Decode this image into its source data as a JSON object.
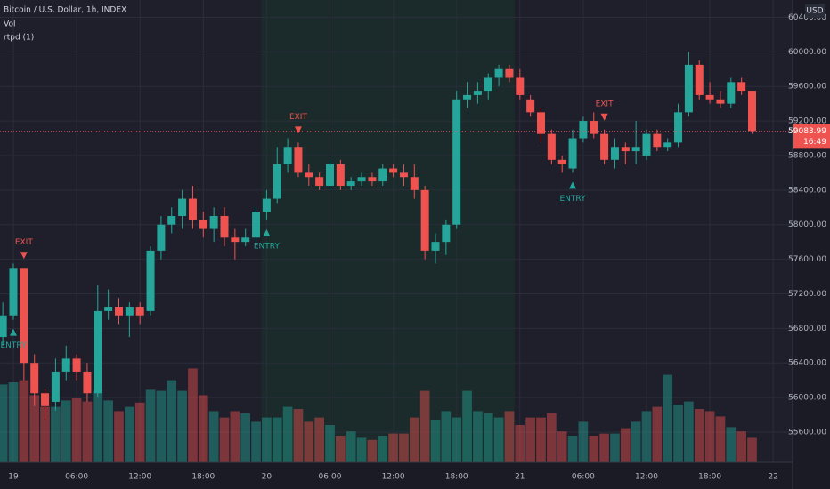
{
  "chart_data": {
    "type": "candlestick",
    "title": "Bitcoin / U.S. Dollar, 1h, INDEX",
    "indicators": [
      "Vol",
      "rtpd (1)"
    ],
    "currency": "USD",
    "categories": [
      null,
      "19",
      null,
      null,
      null,
      null,
      null,
      "06:00",
      null,
      null,
      null,
      null,
      null,
      "12:00",
      null,
      null,
      null,
      null,
      null,
      "18:00",
      null,
      null,
      null,
      null,
      null,
      "20",
      null,
      null,
      null,
      null,
      null,
      "06:00",
      null,
      null,
      null,
      null,
      null,
      "12:00",
      null,
      null,
      null,
      null,
      null,
      "18:00",
      null,
      null,
      null,
      null,
      null,
      "21",
      null,
      null,
      null,
      null,
      null,
      "06:00",
      null,
      null,
      null,
      null,
      null,
      "12:00",
      null,
      null,
      null,
      null,
      null,
      "18:00",
      null,
      null,
      null,
      null,
      null,
      "22"
    ],
    "open": [
      56700,
      56950,
      57500,
      56400,
      56050,
      55950,
      56300,
      56450,
      56300,
      56050,
      57000,
      57050,
      56950,
      57050,
      57000,
      57700,
      58000,
      58100,
      58300,
      58050,
      57950,
      58100,
      57850,
      57800,
      57850,
      58150,
      58300,
      58700,
      58900,
      58600,
      58550,
      58450,
      58700,
      58450,
      58500,
      58550,
      58500,
      58650,
      58600,
      58550,
      58400,
      57700,
      57800,
      58000,
      59450,
      59500,
      59550,
      59700,
      59800,
      59700,
      59450,
      59300,
      59050,
      58750,
      58650,
      59000,
      59200,
      59050,
      58750,
      58900,
      58850,
      58800,
      59050,
      58900,
      58950,
      59300,
      59850,
      59500,
      59450,
      59400,
      59650,
      59550,
      null,
      null
    ],
    "high": [
      57100,
      57550,
      57500,
      56500,
      56100,
      56450,
      56600,
      56500,
      56400,
      57300,
      57250,
      57150,
      57100,
      57100,
      57750,
      58100,
      58200,
      58400,
      58450,
      58150,
      58200,
      58200,
      57950,
      57950,
      58200,
      58400,
      58900,
      59000,
      58950,
      58700,
      58600,
      58750,
      58750,
      58550,
      58600,
      58600,
      58700,
      58700,
      58700,
      58700,
      58450,
      57900,
      58050,
      59550,
      59650,
      59650,
      59750,
      59850,
      59850,
      59800,
      59500,
      59350,
      59100,
      58800,
      59100,
      59250,
      59300,
      59100,
      59000,
      58950,
      59200,
      59100,
      59100,
      59000,
      59400,
      60000,
      59900,
      59650,
      59550,
      59700,
      59700,
      59550,
      null,
      null
    ],
    "low": [
      56600,
      56900,
      56200,
      55900,
      55750,
      55850,
      56200,
      56200,
      55950,
      56000,
      56900,
      56850,
      56700,
      56850,
      56950,
      57600,
      57900,
      57950,
      57950,
      57850,
      57800,
      57750,
      57600,
      57750,
      57800,
      58050,
      58250,
      58600,
      58550,
      58450,
      58400,
      58400,
      58400,
      58400,
      58450,
      58450,
      58450,
      58550,
      58450,
      58300,
      57600,
      57550,
      57650,
      57950,
      59350,
      59400,
      59450,
      59600,
      59650,
      59450,
      59250,
      58950,
      58700,
      58600,
      58600,
      58950,
      59000,
      58700,
      58650,
      58700,
      58700,
      58750,
      58850,
      58850,
      58900,
      59250,
      59450,
      59400,
      59350,
      59350,
      59500,
      59050,
      null,
      null
    ],
    "close": [
      56950,
      57500,
      56400,
      56050,
      55900,
      56300,
      56450,
      56300,
      56050,
      57000,
      57050,
      56950,
      57050,
      56950,
      57700,
      58000,
      58100,
      58300,
      58050,
      57950,
      58100,
      57850,
      57800,
      57850,
      58150,
      58300,
      58700,
      58900,
      58600,
      58550,
      58450,
      58700,
      58450,
      58500,
      58550,
      58500,
      58650,
      58600,
      58550,
      58400,
      57700,
      57800,
      58000,
      59450,
      59500,
      59550,
      59700,
      59800,
      59700,
      59500,
      59300,
      59050,
      58750,
      58700,
      59000,
      59200,
      59050,
      58750,
      58900,
      58850,
      58900,
      59050,
      58900,
      58950,
      59300,
      59850,
      59500,
      59450,
      59400,
      59650,
      59550,
      59083.99,
      null,
      null
    ],
    "up_color": "#26a69a",
    "down_color": "#ef5350",
    "volume": {
      "values": [
        73,
        75,
        77,
        63,
        52,
        52,
        58,
        60,
        57,
        67,
        58,
        48,
        52,
        56,
        68,
        67,
        77,
        67,
        88,
        63,
        48,
        42,
        48,
        46,
        38,
        42,
        42,
        52,
        50,
        38,
        42,
        35,
        25,
        29,
        23,
        21,
        25,
        27,
        27,
        42,
        67,
        40,
        48,
        42,
        67,
        48,
        46,
        42,
        48,
        35,
        42,
        42,
        46,
        29,
        25,
        38,
        25,
        27,
        27,
        32,
        38,
        48,
        52,
        82,
        54,
        57,
        50,
        48,
        43,
        33,
        29,
        23,
        null,
        null
      ],
      "ylim": [
        0,
        100
      ]
    },
    "ylim": [
      55250,
      60600
    ],
    "yticks": [
      {
        "value": 55600,
        "label": "55600.00"
      },
      {
        "value": 56000,
        "label": "56000.00"
      },
      {
        "value": 56400,
        "label": "56400.00"
      },
      {
        "value": 56800,
        "label": "56800.00"
      },
      {
        "value": 57200,
        "label": "57200.00"
      },
      {
        "value": 57600,
        "label": "57600.00"
      },
      {
        "value": 58000,
        "label": "58000.00"
      },
      {
        "value": 58400,
        "label": "58400.00"
      },
      {
        "value": 58800,
        "label": "58800.00"
      },
      {
        "value": 59200,
        "label": "59200.00"
      },
      {
        "value": 59600,
        "label": "59600.00"
      },
      {
        "value": 60000,
        "label": "60000.00"
      },
      {
        "value": 60400,
        "label": "60400.00"
      }
    ],
    "grid": true,
    "last_price": 59083.99,
    "countdown": "16:49",
    "highlight": [
      25,
      49
    ],
    "signals": [
      {
        "label": "ENTRY",
        "index": 1,
        "side": "below"
      },
      {
        "label": "EXIT",
        "index": 2,
        "side": "above"
      },
      {
        "label": "ENTRY",
        "index": 25,
        "side": "below"
      },
      {
        "label": "EXIT",
        "index": 28,
        "side": "above"
      },
      {
        "label": "ENTRY",
        "index": 54,
        "side": "below"
      },
      {
        "label": "EXIT",
        "index": 57,
        "side": "above"
      }
    ]
  }
}
